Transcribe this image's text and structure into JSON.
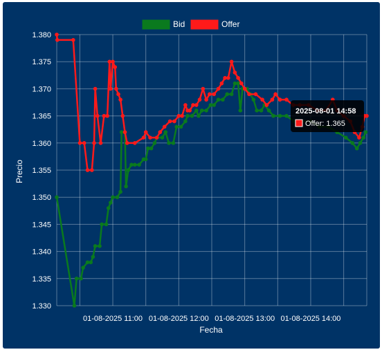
{
  "chart_data": {
    "type": "line",
    "xlabel": "Fecha",
    "ylabel": "Precio",
    "ylim": [
      1.33,
      1.38
    ],
    "y_ticks": [
      "1.380",
      "1.375",
      "1.370",
      "1.365",
      "1.360",
      "1.355",
      "1.350",
      "1.345",
      "1.340",
      "1.335",
      "1.330"
    ],
    "x_ticks": [
      "01-08-2025 11:00",
      "01-08-2025 12:00",
      "01-08-2025 13:00",
      "01-08-2025 14:00"
    ],
    "x_tick_times": [
      660,
      720,
      780,
      840
    ],
    "x_range": [
      609,
      891
    ],
    "grid": true,
    "legend_position": "top",
    "series": [
      {
        "name": "Bid",
        "color": "#0a7a1e",
        "points": [
          [
            609,
            1.35
          ],
          [
            625,
            1.33
          ],
          [
            627,
            1.335
          ],
          [
            631,
            1.335
          ],
          [
            633,
            1.337
          ],
          [
            637,
            1.338
          ],
          [
            640,
            1.338
          ],
          [
            642,
            1.339
          ],
          [
            644,
            1.341
          ],
          [
            648,
            1.341
          ],
          [
            650,
            1.345
          ],
          [
            654,
            1.345
          ],
          [
            656,
            1.348
          ],
          [
            658,
            1.349
          ],
          [
            660,
            1.35
          ],
          [
            664,
            1.35
          ],
          [
            667,
            1.351
          ],
          [
            668,
            1.362
          ],
          [
            671,
            1.362
          ],
          [
            672,
            1.352
          ],
          [
            674,
            1.355
          ],
          [
            677,
            1.356
          ],
          [
            680,
            1.356
          ],
          [
            684,
            1.356
          ],
          [
            688,
            1.357
          ],
          [
            690,
            1.357
          ],
          [
            692,
            1.359
          ],
          [
            695,
            1.359
          ],
          [
            698,
            1.36
          ],
          [
            700,
            1.361
          ],
          [
            705,
            1.361
          ],
          [
            708,
            1.362
          ],
          [
            711,
            1.36
          ],
          [
            715,
            1.36
          ],
          [
            718,
            1.363
          ],
          [
            722,
            1.363
          ],
          [
            726,
            1.364
          ],
          [
            728,
            1.365
          ],
          [
            732,
            1.365
          ],
          [
            736,
            1.366
          ],
          [
            738,
            1.365
          ],
          [
            741,
            1.366
          ],
          [
            745,
            1.366
          ],
          [
            749,
            1.367
          ],
          [
            752,
            1.367
          ],
          [
            756,
            1.368
          ],
          [
            760,
            1.368
          ],
          [
            764,
            1.369
          ],
          [
            768,
            1.369
          ],
          [
            771,
            1.371
          ],
          [
            774,
            1.371
          ],
          [
            776,
            1.366
          ],
          [
            778,
            1.37
          ],
          [
            782,
            1.37
          ],
          [
            785,
            1.369
          ],
          [
            788,
            1.368
          ],
          [
            791,
            1.366
          ],
          [
            795,
            1.366
          ],
          [
            798,
            1.367
          ],
          [
            802,
            1.366
          ],
          [
            806,
            1.365
          ],
          [
            812,
            1.365
          ],
          [
            818,
            1.365
          ],
          [
            825,
            1.364
          ],
          [
            832,
            1.364
          ],
          [
            840,
            1.364
          ],
          [
            848,
            1.363
          ],
          [
            856,
            1.363
          ],
          [
            864,
            1.362
          ],
          [
            872,
            1.361
          ],
          [
            878,
            1.36
          ],
          [
            882,
            1.359
          ],
          [
            885,
            1.36
          ],
          [
            888,
            1.361
          ],
          [
            890,
            1.362
          ]
        ]
      },
      {
        "name": "Offer",
        "color": "#ff1a1a",
        "points": [
          [
            609,
            1.38
          ],
          [
            609.5,
            1.379
          ],
          [
            624,
            1.379
          ],
          [
            630,
            1.36
          ],
          [
            634,
            1.36
          ],
          [
            637,
            1.355
          ],
          [
            641,
            1.355
          ],
          [
            643,
            1.36
          ],
          [
            644,
            1.37
          ],
          [
            646,
            1.365
          ],
          [
            649,
            1.36
          ],
          [
            652,
            1.365
          ],
          [
            655,
            1.365
          ],
          [
            657,
            1.375
          ],
          [
            658,
            1.37
          ],
          [
            660,
            1.375
          ],
          [
            662,
            1.374
          ],
          [
            663,
            1.37
          ],
          [
            665,
            1.369
          ],
          [
            667,
            1.368
          ],
          [
            669,
            1.365
          ],
          [
            671,
            1.362
          ],
          [
            673,
            1.36
          ],
          [
            680,
            1.36
          ],
          [
            688,
            1.361
          ],
          [
            690,
            1.362
          ],
          [
            694,
            1.361
          ],
          [
            700,
            1.361
          ],
          [
            703,
            1.362
          ],
          [
            707,
            1.363
          ],
          [
            712,
            1.364
          ],
          [
            716,
            1.364
          ],
          [
            720,
            1.365
          ],
          [
            723,
            1.365
          ],
          [
            726,
            1.367
          ],
          [
            728,
            1.366
          ],
          [
            730,
            1.366
          ],
          [
            733,
            1.367
          ],
          [
            736,
            1.367
          ],
          [
            739,
            1.368
          ],
          [
            742,
            1.37
          ],
          [
            745,
            1.368
          ],
          [
            748,
            1.369
          ],
          [
            752,
            1.369
          ],
          [
            756,
            1.37
          ],
          [
            759,
            1.371
          ],
          [
            762,
            1.372
          ],
          [
            765,
            1.372
          ],
          [
            768,
            1.375
          ],
          [
            771,
            1.373
          ],
          [
            774,
            1.372
          ],
          [
            777,
            1.371
          ],
          [
            780,
            1.37
          ],
          [
            784,
            1.369
          ],
          [
            790,
            1.369
          ],
          [
            796,
            1.368
          ],
          [
            800,
            1.367
          ],
          [
            805,
            1.368
          ],
          [
            808,
            1.369
          ],
          [
            812,
            1.368
          ],
          [
            818,
            1.368
          ],
          [
            824,
            1.367
          ],
          [
            830,
            1.367
          ],
          [
            838,
            1.367
          ],
          [
            846,
            1.366
          ],
          [
            854,
            1.366
          ],
          [
            860,
            1.368
          ],
          [
            864,
            1.366
          ],
          [
            870,
            1.365
          ],
          [
            876,
            1.364
          ],
          [
            880,
            1.362
          ],
          [
            884,
            1.361
          ],
          [
            887,
            1.363
          ],
          [
            889,
            1.365
          ],
          [
            891,
            1.365
          ]
        ]
      }
    ],
    "tooltip": {
      "title": "2025-08-01 14:58",
      "label": "Offer: 1.365",
      "swatch_color": "#ff1a1a"
    }
  }
}
